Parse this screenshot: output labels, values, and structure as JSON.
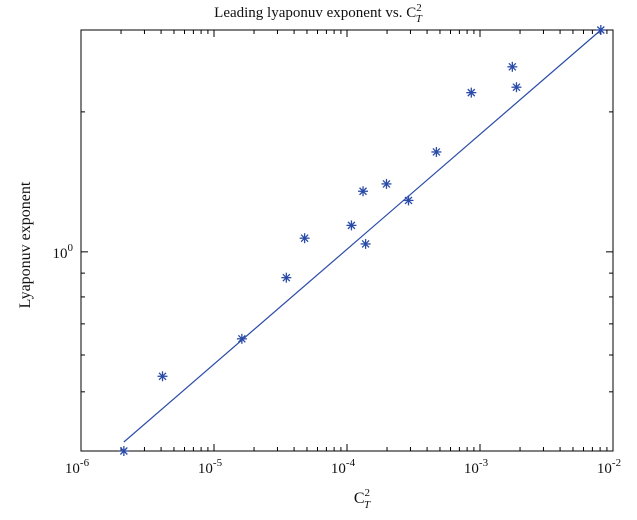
{
  "chart_data": {
    "type": "scatter",
    "title": "Leading lyaponuv exponent vs. C",
    "title_sup": "2",
    "title_sub": "T",
    "xlabel": "C",
    "xlabel_sup": "2",
    "xlabel_sub": "T",
    "ylabel": "Lyaponuv exponent",
    "x_scale": "log",
    "y_scale": "log",
    "xlim": [
      1e-06,
      0.01
    ],
    "ylim": [
      0.373,
      3.0
    ],
    "x_ticks": [
      {
        "value": 1e-06,
        "base": "10",
        "exp": "-6"
      },
      {
        "value": 1e-05,
        "base": "10",
        "exp": "-5"
      },
      {
        "value": 0.0001,
        "base": "10",
        "exp": "-4"
      },
      {
        "value": 0.001,
        "base": "10",
        "exp": "-3"
      },
      {
        "value": 0.01,
        "base": "10",
        "exp": "-2"
      }
    ],
    "y_ticks": [
      {
        "value": 1,
        "base": "10",
        "exp": "0"
      }
    ],
    "y_minor_ticks": [
      0.5,
      0.6,
      0.7,
      0.8,
      0.9,
      2,
      3
    ],
    "grid": false,
    "legend": "none",
    "series": [
      {
        "marker": "asterisk",
        "color": "#2a4ba8",
        "points": [
          {
            "x": 2.1e-06,
            "y": 0.373
          },
          {
            "x": 4.1e-06,
            "y": 0.54
          },
          {
            "x": 1.62e-05,
            "y": 0.65
          },
          {
            "x": 3.5e-05,
            "y": 0.88
          },
          {
            "x": 4.8e-05,
            "y": 1.07
          },
          {
            "x": 0.000108,
            "y": 1.14
          },
          {
            "x": 0.000132,
            "y": 1.35
          },
          {
            "x": 0.000138,
            "y": 1.04
          },
          {
            "x": 0.000198,
            "y": 1.4
          },
          {
            "x": 0.00029,
            "y": 1.29
          },
          {
            "x": 0.00047,
            "y": 1.64
          },
          {
            "x": 0.00086,
            "y": 2.2
          },
          {
            "x": 0.00175,
            "y": 2.5
          },
          {
            "x": 0.00188,
            "y": 2.26
          },
          {
            "x": 0.0081,
            "y": 3.0
          }
        ]
      },
      {
        "type": "line",
        "color": "#2a4ba8",
        "points": [
          {
            "x": 2.1e-06,
            "y": 0.39
          },
          {
            "x": 0.0081,
            "y": 3.0
          }
        ]
      }
    ]
  }
}
